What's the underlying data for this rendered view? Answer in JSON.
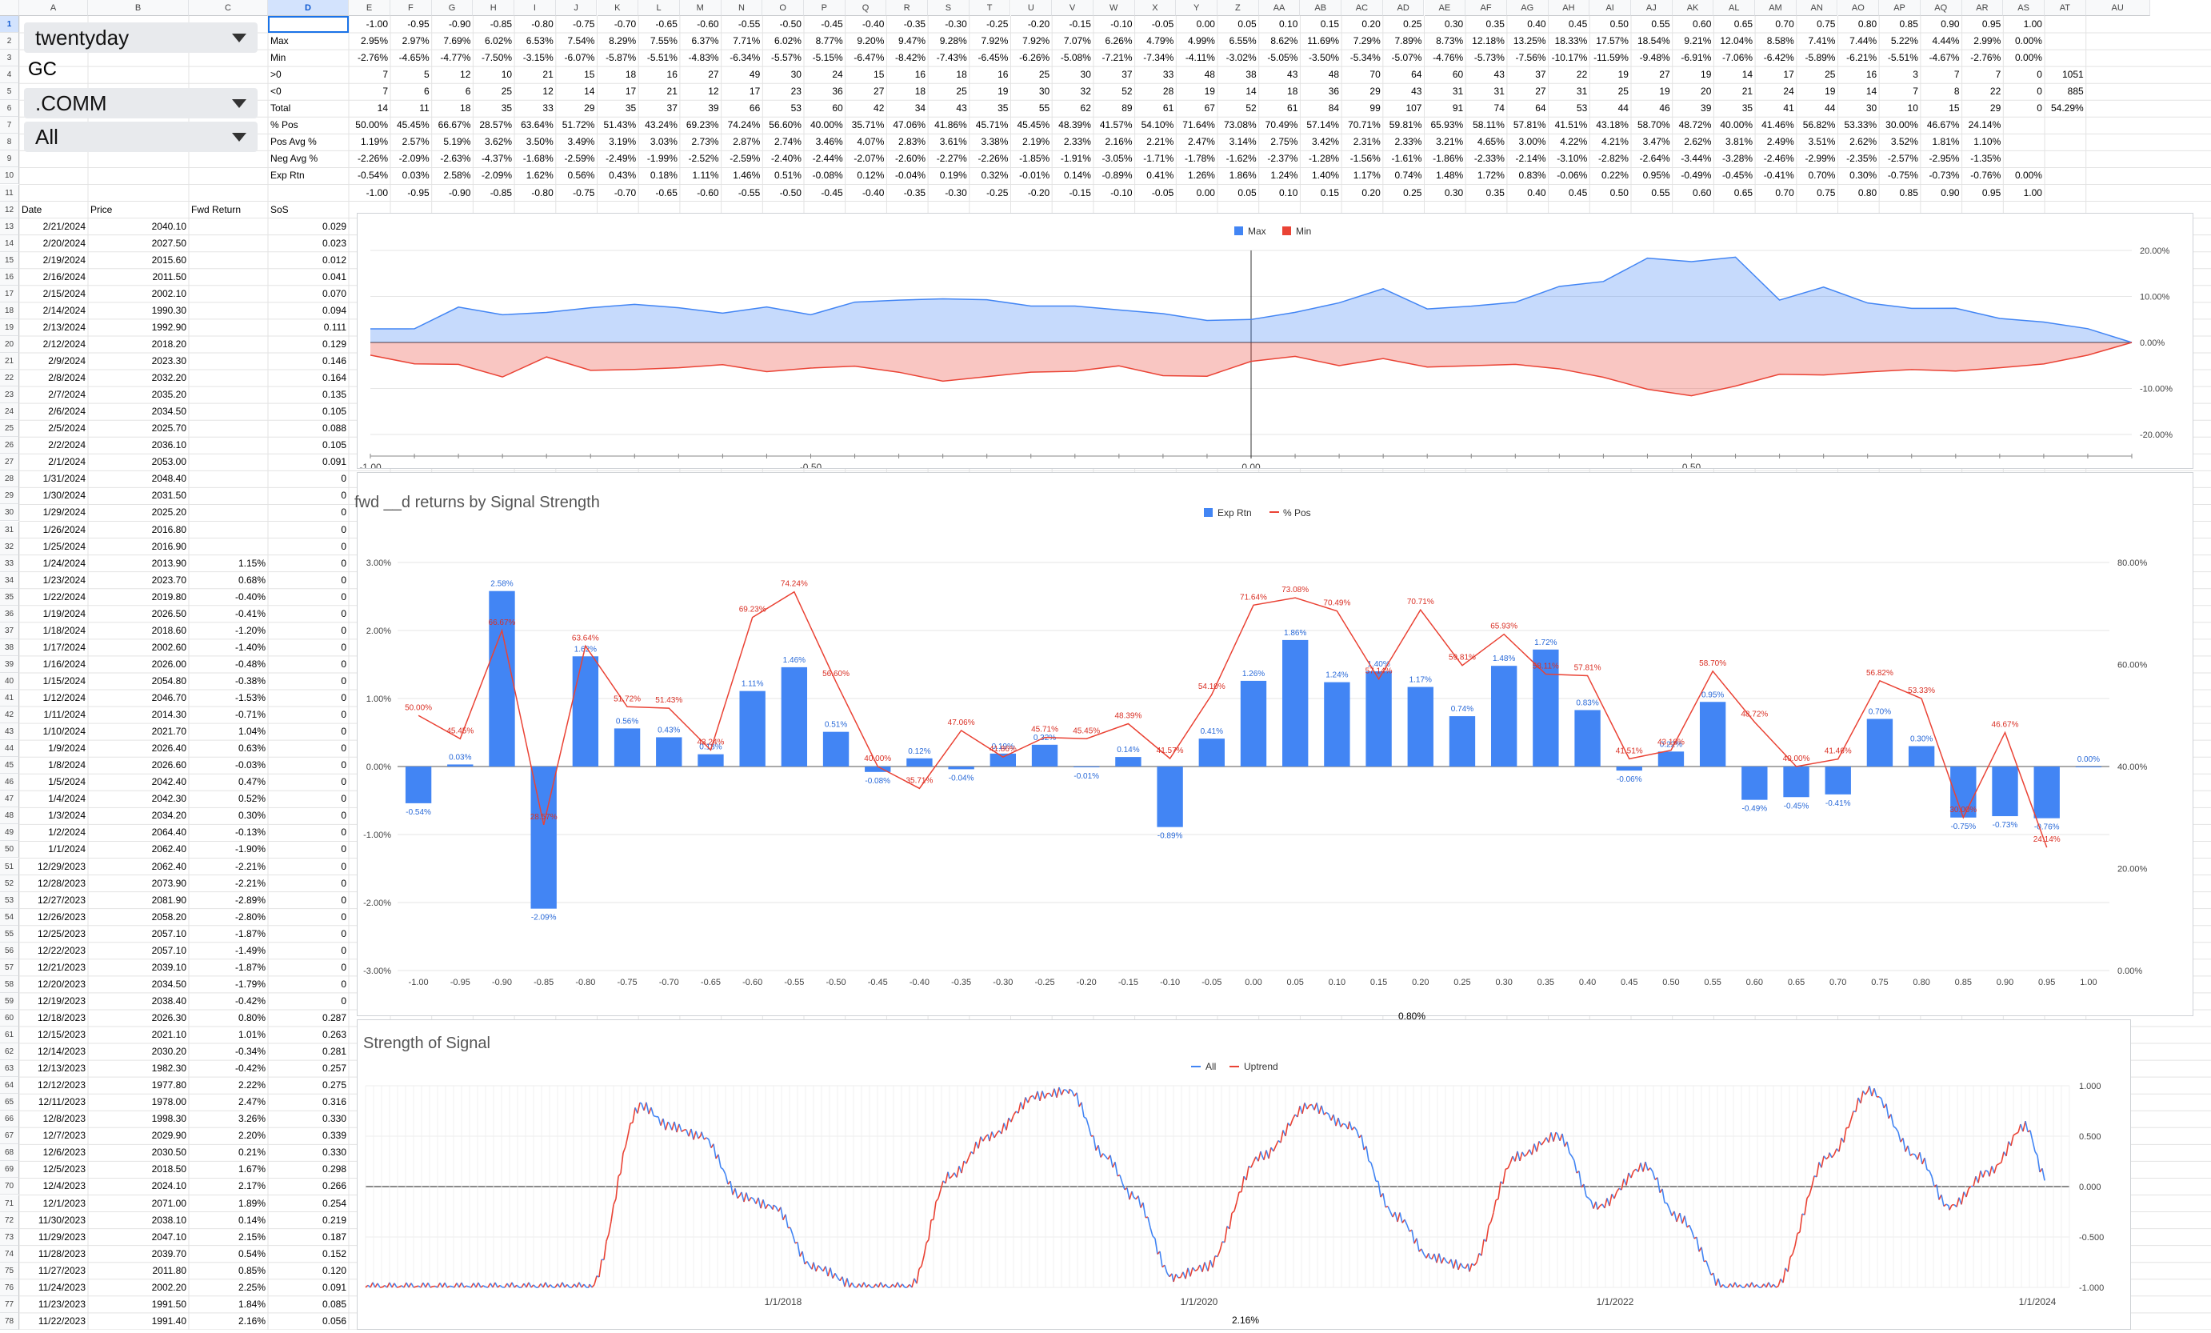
{
  "controls": {
    "d1": "twentyday",
    "d2": "GC",
    "d3": ".COMM",
    "d4": "All"
  },
  "columns": [
    "A",
    "B",
    "C",
    "D",
    "E",
    "F",
    "G",
    "H",
    "I",
    "J",
    "K",
    "L",
    "M",
    "N",
    "O",
    "P",
    "Q",
    "R",
    "S",
    "T",
    "U",
    "V",
    "W",
    "X",
    "Y",
    "Z",
    "AA",
    "AB",
    "AC",
    "AD",
    "AE",
    "AF",
    "AG",
    "AH",
    "AI",
    "AJ",
    "AK",
    "AL",
    "AM",
    "AN",
    "AO",
    "AP",
    "AQ",
    "AR",
    "AS",
    "AT",
    "AU"
  ],
  "stats": {
    "labels": [
      "Max",
      "Min",
      ">0",
      "<0",
      "Total",
      "% Pos",
      "Pos Avg %",
      "Neg Avg %",
      "Exp Rtn"
    ],
    "signals": [
      "-1.00",
      "-0.95",
      "-0.90",
      "-0.85",
      "-0.80",
      "-0.75",
      "-0.70",
      "-0.65",
      "-0.60",
      "-0.55",
      "-0.50",
      "-0.45",
      "-0.40",
      "-0.35",
      "-0.30",
      "-0.25",
      "-0.20",
      "-0.15",
      "-0.10",
      "-0.05",
      "0.00",
      "0.05",
      "0.10",
      "0.15",
      "0.20",
      "0.25",
      "0.30",
      "0.35",
      "0.40",
      "0.45",
      "0.50",
      "0.55",
      "0.60",
      "0.65",
      "0.70",
      "0.75",
      "0.80",
      "0.85",
      "0.90",
      "0.95",
      "1.00"
    ],
    "max": [
      "2.95%",
      "2.97%",
      "7.69%",
      "6.02%",
      "6.53%",
      "7.54%",
      "8.29%",
      "7.55%",
      "6.37%",
      "7.71%",
      "6.02%",
      "8.77%",
      "9.20%",
      "9.47%",
      "9.28%",
      "7.92%",
      "7.92%",
      "7.07%",
      "6.26%",
      "4.79%",
      "4.99%",
      "6.55%",
      "8.62%",
      "11.69%",
      "7.29%",
      "7.89%",
      "8.73%",
      "12.18%",
      "13.25%",
      "18.33%",
      "17.57%",
      "18.54%",
      "9.21%",
      "12.04%",
      "8.58%",
      "7.41%",
      "7.44%",
      "5.22%",
      "4.44%",
      "2.99%",
      "0.00%"
    ],
    "min": [
      "-2.76%",
      "-4.65%",
      "-4.77%",
      "-7.50%",
      "-3.15%",
      "-6.07%",
      "-5.87%",
      "-5.51%",
      "-4.83%",
      "-6.34%",
      "-5.57%",
      "-5.15%",
      "-6.47%",
      "-8.42%",
      "-7.43%",
      "-6.45%",
      "-6.26%",
      "-5.08%",
      "-7.21%",
      "-7.34%",
      "-4.11%",
      "-3.02%",
      "-5.05%",
      "-3.50%",
      "-5.34%",
      "-5.07%",
      "-4.76%",
      "-5.73%",
      "-7.56%",
      "-10.17%",
      "-11.59%",
      "-9.48%",
      "-6.91%",
      "-7.06%",
      "-6.42%",
      "-5.89%",
      "-6.21%",
      "-5.51%",
      "-4.67%",
      "-2.76%",
      "0.00%"
    ],
    "pos": [
      "7",
      "5",
      "12",
      "10",
      "21",
      "15",
      "18",
      "16",
      "27",
      "49",
      "30",
      "24",
      "15",
      "16",
      "18",
      "16",
      "25",
      "30",
      "37",
      "33",
      "48",
      "38",
      "43",
      "48",
      "70",
      "64",
      "60",
      "43",
      "37",
      "22",
      "19",
      "27",
      "19",
      "14",
      "17",
      "25",
      "16",
      "3",
      "7",
      "7",
      "0"
    ],
    "neg": [
      "7",
      "6",
      "6",
      "25",
      "12",
      "14",
      "17",
      "21",
      "12",
      "17",
      "23",
      "36",
      "27",
      "18",
      "25",
      "19",
      "30",
      "32",
      "52",
      "28",
      "19",
      "14",
      "18",
      "36",
      "29",
      "43",
      "31",
      "31",
      "27",
      "31",
      "25",
      "19",
      "20",
      "21",
      "24",
      "19",
      "14",
      "7",
      "8",
      "22",
      "0"
    ],
    "total": [
      "14",
      "11",
      "18",
      "35",
      "33",
      "29",
      "35",
      "37",
      "39",
      "66",
      "53",
      "60",
      "42",
      "34",
      "43",
      "35",
      "55",
      "62",
      "89",
      "61",
      "67",
      "52",
      "61",
      "84",
      "99",
      "107",
      "91",
      "74",
      "64",
      "53",
      "44",
      "46",
      "39",
      "35",
      "41",
      "44",
      "30",
      "10",
      "15",
      "29",
      "0"
    ],
    "pctpos": [
      "50.00%",
      "45.45%",
      "66.67%",
      "28.57%",
      "63.64%",
      "51.72%",
      "51.43%",
      "43.24%",
      "69.23%",
      "74.24%",
      "56.60%",
      "40.00%",
      "35.71%",
      "47.06%",
      "41.86%",
      "45.71%",
      "45.45%",
      "48.39%",
      "41.57%",
      "54.10%",
      "71.64%",
      "73.08%",
      "70.49%",
      "57.14%",
      "70.71%",
      "59.81%",
      "65.93%",
      "58.11%",
      "57.81%",
      "41.51%",
      "43.18%",
      "58.70%",
      "48.72%",
      "40.00%",
      "41.46%",
      "56.82%",
      "53.33%",
      "30.00%",
      "46.67%",
      "24.14%",
      ""
    ],
    "posavg": [
      "1.19%",
      "2.57%",
      "5.19%",
      "3.62%",
      "3.50%",
      "3.49%",
      "3.19%",
      "3.03%",
      "2.73%",
      "2.87%",
      "2.74%",
      "3.46%",
      "4.07%",
      "2.83%",
      "3.61%",
      "3.38%",
      "2.19%",
      "2.33%",
      "2.16%",
      "2.21%",
      "2.47%",
      "3.14%",
      "2.75%",
      "3.42%",
      "2.31%",
      "2.33%",
      "3.21%",
      "4.65%",
      "3.00%",
      "4.22%",
      "4.21%",
      "3.47%",
      "2.62%",
      "3.81%",
      "2.49%",
      "3.51%",
      "2.62%",
      "3.52%",
      "1.81%",
      "1.10%",
      ""
    ],
    "negavg": [
      "-2.26%",
      "-2.09%",
      "-2.63%",
      "-4.37%",
      "-1.68%",
      "-2.59%",
      "-2.49%",
      "-1.99%",
      "-2.52%",
      "-2.59%",
      "-2.40%",
      "-2.44%",
      "-2.07%",
      "-2.60%",
      "-2.27%",
      "-2.26%",
      "-1.85%",
      "-1.91%",
      "-3.05%",
      "-1.71%",
      "-1.78%",
      "-1.62%",
      "-2.37%",
      "-1.28%",
      "-1.56%",
      "-1.61%",
      "-1.86%",
      "-2.33%",
      "-2.14%",
      "-3.10%",
      "-2.82%",
      "-2.64%",
      "-3.44%",
      "-3.28%",
      "-2.46%",
      "-2.99%",
      "-2.35%",
      "-2.57%",
      "-2.95%",
      "-1.35%",
      ""
    ],
    "exprtn": [
      "-0.54%",
      "0.03%",
      "2.58%",
      "-2.09%",
      "1.62%",
      "0.56%",
      "0.43%",
      "0.18%",
      "1.11%",
      "1.46%",
      "0.51%",
      "-0.08%",
      "0.12%",
      "-0.04%",
      "0.19%",
      "0.32%",
      "-0.01%",
      "0.14%",
      "-0.89%",
      "0.41%",
      "1.26%",
      "1.86%",
      "1.24%",
      "1.40%",
      "1.17%",
      "0.74%",
      "1.48%",
      "1.72%",
      "0.83%",
      "-0.06%",
      "0.22%",
      "0.95%",
      "-0.49%",
      "-0.45%",
      "-0.41%",
      "0.70%",
      "0.30%",
      "-0.75%",
      "-0.73%",
      "-0.76%",
      "0.00%"
    ],
    "extra": {
      "r4": "1051",
      "r5": "885",
      "r6": "54.29%"
    }
  },
  "table": {
    "headers": [
      "Date",
      "Price",
      "Fwd Return",
      "SoS"
    ],
    "rows": [
      [
        "2/21/2024",
        "2040.10",
        "",
        "0.029"
      ],
      [
        "2/20/2024",
        "2027.50",
        "",
        "0.023"
      ],
      [
        "2/19/2024",
        "2015.60",
        "",
        "0.012"
      ],
      [
        "2/16/2024",
        "2011.50",
        "",
        "0.041"
      ],
      [
        "2/15/2024",
        "2002.10",
        "",
        "0.070"
      ],
      [
        "2/14/2024",
        "1990.30",
        "",
        "0.094"
      ],
      [
        "2/13/2024",
        "1992.90",
        "",
        "0.111"
      ],
      [
        "2/12/2024",
        "2018.20",
        "",
        "0.129"
      ],
      [
        "2/9/2024",
        "2023.30",
        "",
        "0.146"
      ],
      [
        "2/8/2024",
        "2032.20",
        "",
        "0.164"
      ],
      [
        "2/7/2024",
        "2035.20",
        "",
        "0.135"
      ],
      [
        "2/6/2024",
        "2034.50",
        "",
        "0.105"
      ],
      [
        "2/5/2024",
        "2025.70",
        "",
        "0.088"
      ],
      [
        "2/2/2024",
        "2036.10",
        "",
        "0.105"
      ],
      [
        "2/1/2024",
        "2053.00",
        "",
        "0.091"
      ],
      [
        "1/31/2024",
        "2048.40",
        "",
        "0"
      ],
      [
        "1/30/2024",
        "2031.50",
        "",
        "0"
      ],
      [
        "1/29/2024",
        "2025.20",
        "",
        "0"
      ],
      [
        "1/26/2024",
        "2016.80",
        "",
        "0"
      ],
      [
        "1/25/2024",
        "2016.90",
        "",
        "0"
      ],
      [
        "1/24/2024",
        "2013.90",
        "1.15%",
        "0"
      ],
      [
        "1/23/2024",
        "2023.70",
        "0.68%",
        "0"
      ],
      [
        "1/22/2024",
        "2019.80",
        "-0.40%",
        "0"
      ],
      [
        "1/19/2024",
        "2026.50",
        "-0.41%",
        "0"
      ],
      [
        "1/18/2024",
        "2018.60",
        "-1.20%",
        "0"
      ],
      [
        "1/17/2024",
        "2002.60",
        "-1.40%",
        "0"
      ],
      [
        "1/16/2024",
        "2026.00",
        "-0.48%",
        "0"
      ],
      [
        "1/15/2024",
        "2054.80",
        "-0.38%",
        "0"
      ],
      [
        "1/12/2024",
        "2046.70",
        "-1.53%",
        "0"
      ],
      [
        "1/11/2024",
        "2014.30",
        "-0.71%",
        "0"
      ],
      [
        "1/10/2024",
        "2021.70",
        "1.04%",
        "0"
      ],
      [
        "1/9/2024",
        "2026.40",
        "0.63%",
        "0"
      ],
      [
        "1/8/2024",
        "2026.60",
        "-0.03%",
        "0"
      ],
      [
        "1/5/2024",
        "2042.40",
        "0.47%",
        "0"
      ],
      [
        "1/4/2024",
        "2042.30",
        "0.52%",
        "0"
      ],
      [
        "1/3/2024",
        "2034.20",
        "0.30%",
        "0"
      ],
      [
        "1/2/2024",
        "2064.40",
        "-0.13%",
        "0"
      ],
      [
        "1/1/2024",
        "2062.40",
        "-1.90%",
        "0"
      ],
      [
        "12/29/2023",
        "2062.40",
        "-2.21%",
        "0"
      ],
      [
        "12/28/2023",
        "2073.90",
        "-2.21%",
        "0"
      ],
      [
        "12/27/2023",
        "2081.90",
        "-2.89%",
        "0"
      ],
      [
        "12/26/2023",
        "2058.20",
        "-2.80%",
        "0"
      ],
      [
        "12/25/2023",
        "2057.10",
        "-1.87%",
        "0"
      ],
      [
        "12/22/2023",
        "2057.10",
        "-1.49%",
        "0"
      ],
      [
        "12/21/2023",
        "2039.10",
        "-1.87%",
        "0"
      ],
      [
        "12/20/2023",
        "2034.50",
        "-1.79%",
        "0"
      ],
      [
        "12/19/2023",
        "2038.40",
        "-0.42%",
        "0"
      ],
      [
        "12/18/2023",
        "2026.30",
        "0.80%",
        "0.287"
      ],
      [
        "12/15/2023",
        "2021.10",
        "1.01%",
        "0.263"
      ],
      [
        "12/14/2023",
        "2030.20",
        "-0.34%",
        "0.281"
      ],
      [
        "12/13/2023",
        "1982.30",
        "-0.42%",
        "0.257"
      ],
      [
        "12/12/2023",
        "1977.80",
        "2.22%",
        "0.275"
      ],
      [
        "12/11/2023",
        "1978.00",
        "2.47%",
        "0.316"
      ],
      [
        "12/8/2023",
        "1998.30",
        "3.26%",
        "0.330"
      ],
      [
        "12/7/2023",
        "2029.90",
        "2.20%",
        "0.339"
      ],
      [
        "12/6/2023",
        "2030.50",
        "0.21%",
        "0.330"
      ],
      [
        "12/5/2023",
        "2018.50",
        "1.67%",
        "0.298"
      ],
      [
        "12/4/2023",
        "2024.10",
        "2.17%",
        "0.266"
      ],
      [
        "12/1/2023",
        "2071.00",
        "1.89%",
        "0.254"
      ],
      [
        "11/30/2023",
        "2038.10",
        "0.14%",
        "0.219"
      ],
      [
        "11/29/2023",
        "2047.10",
        "2.15%",
        "0.187"
      ],
      [
        "11/28/2023",
        "2039.70",
        "0.54%",
        "0.152"
      ],
      [
        "11/27/2023",
        "2011.80",
        "0.85%",
        "0.120"
      ],
      [
        "11/24/2023",
        "2002.20",
        "2.25%",
        "0.091"
      ],
      [
        "11/23/2023",
        "1991.50",
        "1.84%",
        "0.085"
      ],
      [
        "11/22/2023",
        "1991.40",
        "2.16%",
        "0.056"
      ]
    ]
  },
  "overflow": {
    "a": "0.80%",
    "b": "2.16%"
  },
  "chart_data": [
    {
      "type": "area",
      "title": "",
      "series": [
        {
          "name": "Max",
          "color": "#4285f4"
        },
        {
          "name": "Min",
          "color": "#ea4335"
        }
      ],
      "x_ticks": [
        "-1.00",
        "-0.50",
        "0.00",
        "0.50"
      ],
      "y_ticks": [
        "20.00%",
        "10.00%",
        "0.00%",
        "-10.00%",
        "-20.00%"
      ],
      "ylim": [
        -20,
        20
      ]
    },
    {
      "type": "bar",
      "title": "fwd __d returns by Signal Strength",
      "series": [
        {
          "name": "Exp Rtn",
          "color": "#4285f4",
          "axis": "left"
        },
        {
          "name": "% Pos",
          "color": "#ea4335",
          "axis": "right"
        }
      ],
      "left_ticks": [
        "3.00%",
        "2.00%",
        "1.00%",
        "0.00%",
        "-1.00%",
        "-2.00%",
        "-3.00%"
      ],
      "right_ticks": [
        "80.00%",
        "60.00%",
        "40.00%",
        "20.00%",
        "0.00%"
      ],
      "ylim_left": [
        -3,
        3
      ],
      "ylim_right": [
        0,
        80
      ]
    },
    {
      "type": "line",
      "title": "Strength of Signal",
      "series": [
        {
          "name": "All",
          "color": "#4285f4"
        },
        {
          "name": "Uptrend",
          "color": "#ea4335"
        }
      ],
      "x_ticks": [
        "1/1/2018",
        "1/1/2020",
        "1/1/2022",
        "1/1/2024"
      ],
      "y_ticks": [
        "1.000",
        "0.500",
        "0.000",
        "-0.500",
        "-1.000"
      ],
      "ylim": [
        -1,
        1
      ]
    }
  ]
}
